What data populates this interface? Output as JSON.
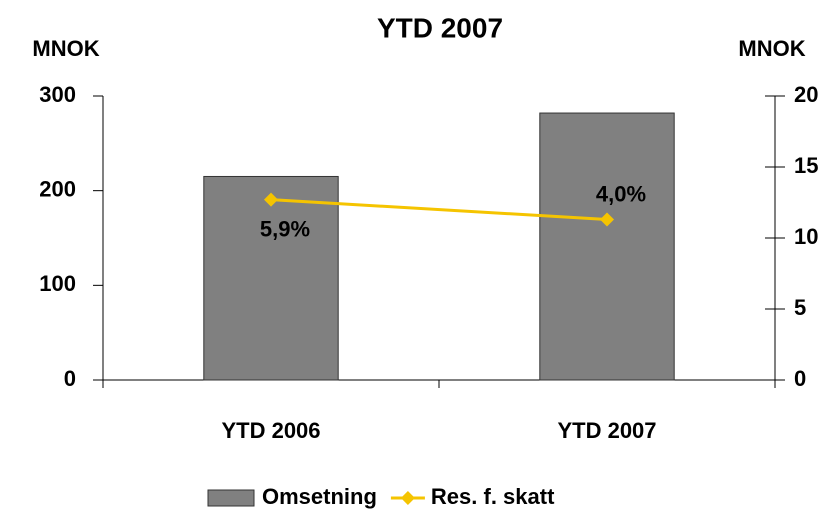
{
  "chart_data": {
    "type": "bar-line",
    "title": "YTD 2007",
    "y_label": "MNOK",
    "y2_label": "MNOK",
    "categories": [
      "YTD 2006",
      "YTD 2007"
    ],
    "series": [
      {
        "name": "Omsetning",
        "type": "bar",
        "color": "#808080",
        "values": [
          215,
          282
        ]
      },
      {
        "name": "Res. f. skatt",
        "type": "line",
        "color": "#f5c400",
        "axis": "y2",
        "values": [
          12.7,
          11.3
        ]
      }
    ],
    "annotations": [
      "5,9%",
      "4,0%"
    ],
    "ylim": [
      0,
      300
    ],
    "yticks": [
      0,
      100,
      200,
      300
    ],
    "y2lim": [
      0,
      20
    ],
    "y2ticks": [
      0,
      5,
      10,
      15,
      20
    ],
    "legend": "bottom"
  }
}
